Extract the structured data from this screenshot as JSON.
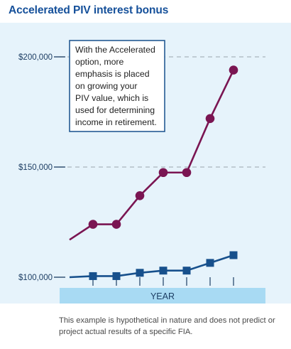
{
  "title": "Accelerated PIV interest bonus",
  "callout": {
    "lines": [
      "With the Accelerated",
      "option, more",
      "emphasis is placed",
      "on growing your",
      "PIV value, which is",
      "used for determining",
      "income in retirement."
    ]
  },
  "footnote": "This example is hypothetical in nature and does not predict or project actual results of a specific FIA.",
  "colors": {
    "title": "#15509a",
    "panel_bg": "#e6f3fb",
    "accelerated_series": "#7a1552",
    "standard_series": "#17508c",
    "axis_band": "#a8daf3",
    "gridline": "#a9b4bd"
  },
  "chart_data": {
    "type": "line",
    "xlabel": "YEAR",
    "ylabel": "",
    "x": [
      0,
      1,
      2,
      3,
      4,
      5,
      6,
      7
    ],
    "ylim": [
      100000,
      210000
    ],
    "yticks": [
      100000,
      150000,
      200000
    ],
    "ytick_labels": [
      "$100,000",
      "$150,000",
      "$200,000"
    ],
    "grid": true,
    "series": [
      {
        "name": "",
        "marker": "circle",
        "color": "#7a1552",
        "values": [
          117000,
          124000,
          124000,
          137000,
          147500,
          147500,
          172000,
          194000
        ]
      },
      {
        "name": "",
        "marker": "square",
        "color": "#17508c",
        "values": [
          100000,
          100500,
          100500,
          102000,
          103000,
          103000,
          106500,
          110000
        ]
      }
    ]
  }
}
